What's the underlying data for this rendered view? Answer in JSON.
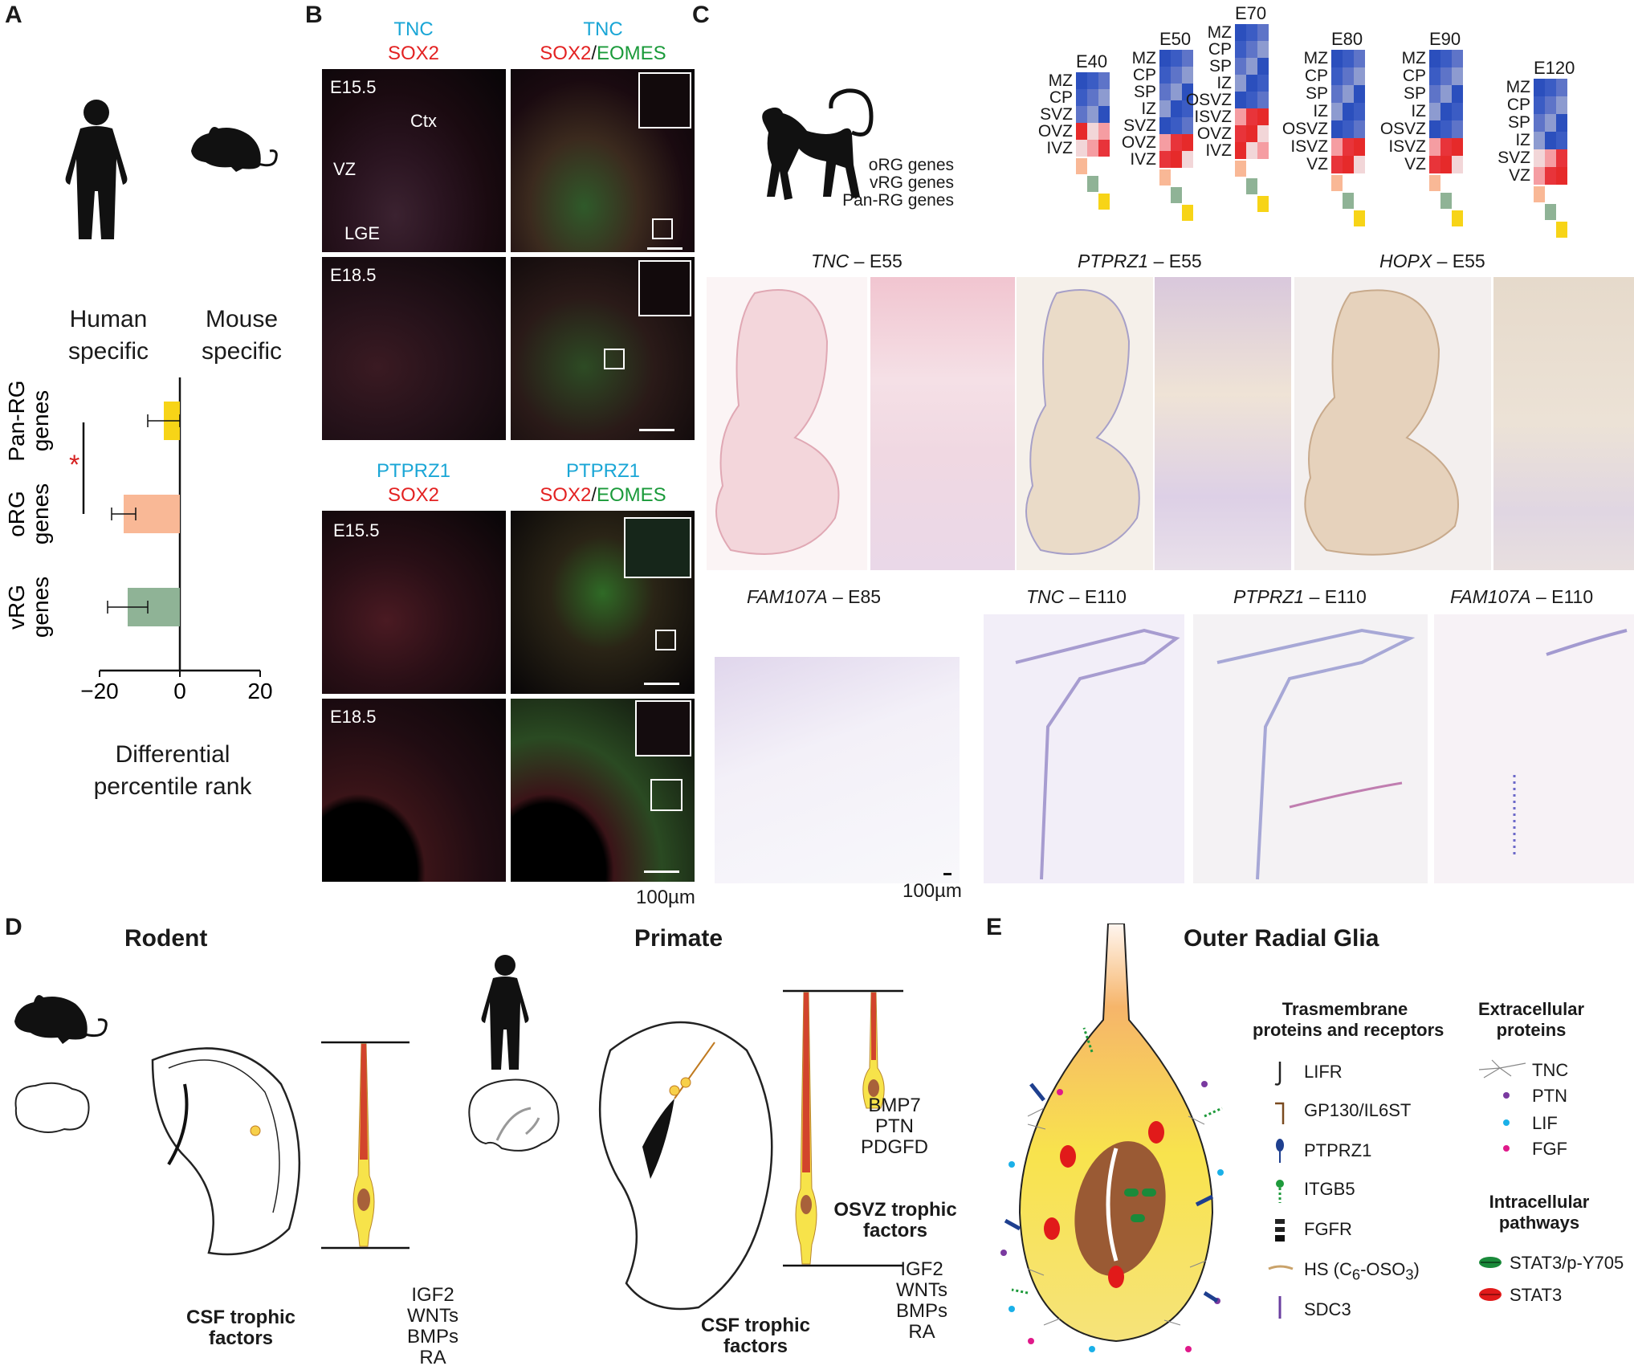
{
  "panels": {
    "a": "A",
    "b": "B",
    "c": "C",
    "d": "D",
    "e": "E"
  },
  "panelA": {
    "left_head": [
      "Human",
      "specific"
    ],
    "right_head": [
      "Mouse",
      "specific"
    ],
    "xlabel": [
      "Differential",
      "percentile rank"
    ],
    "star": "*",
    "chart_data": {
      "type": "bar",
      "orientation": "horizontal",
      "categories": [
        "Pan-RG genes",
        "oRG genes",
        "vRG genes"
      ],
      "category_lines": [
        [
          "Pan-RG",
          "genes"
        ],
        [
          "oRG",
          "genes"
        ],
        [
          "vRG",
          "genes"
        ]
      ],
      "values": [
        -4,
        -14,
        -13
      ],
      "errors": [
        4,
        3,
        5
      ],
      "colors": [
        "#f7d417",
        "#f9b896",
        "#8fb396"
      ],
      "xticks": [
        "−20",
        "0",
        "20"
      ],
      "xtick_values": [
        -20,
        0,
        20
      ],
      "xlim": [
        -24,
        24
      ]
    }
  },
  "panelB": {
    "top": {
      "h1": {
        "a": "TNC",
        "b": "SOX2"
      },
      "h2": {
        "a": "TNC",
        "b": "SOX2",
        "sep": "/",
        "c": "EOMES"
      },
      "ages": [
        "E15.5",
        "E18.5"
      ],
      "regions": [
        "Ctx",
        "VZ",
        "LGE"
      ]
    },
    "bottom": {
      "h1": {
        "a": "PTPRZ1",
        "b": "SOX2"
      },
      "h2": {
        "a": "PTPRZ1",
        "b": "SOX2",
        "sep": "/",
        "c": "EOMES"
      },
      "ages": [
        "E15.5",
        "E18.5"
      ]
    },
    "scale": "100µm"
  },
  "panelC": {
    "heatmaps": [
      {
        "age": "E40",
        "zones": [
          "MZ",
          "CP",
          "SVZ",
          "OVZ",
          "IVZ"
        ]
      },
      {
        "age": "E50",
        "zones": [
          "MZ",
          "CP",
          "SP",
          "IZ",
          "SVZ",
          "OVZ",
          "IVZ"
        ]
      },
      {
        "age": "E70",
        "zones": [
          "MZ",
          "CP",
          "SP",
          "IZ",
          "OSVZ",
          "ISVZ",
          "OVZ",
          "IVZ"
        ]
      },
      {
        "age": "E80",
        "zones": [
          "MZ",
          "CP",
          "SP",
          "IZ",
          "OSVZ",
          "ISVZ",
          "VZ"
        ]
      },
      {
        "age": "E90",
        "zones": [
          "MZ",
          "CP",
          "SP",
          "IZ",
          "OSVZ",
          "ISVZ",
          "VZ"
        ]
      },
      {
        "age": "E120",
        "zones": [
          "MZ",
          "CP",
          "SP",
          "IZ",
          "SVZ",
          "VZ"
        ]
      }
    ],
    "legend": [
      "oRG genes",
      "vRG genes",
      "Pan-RG genes"
    ],
    "legend_colors": [
      "#f9b896",
      "#8fb396",
      "#f7d417"
    ],
    "row1": [
      {
        "gene": "TNC",
        "age": " – E55"
      },
      {
        "gene": "PTPRZ1",
        "age": " – E55"
      },
      {
        "gene": "HOPX",
        "age": " – E55"
      }
    ],
    "row2": [
      {
        "gene": "FAM107A",
        "age": " – E85"
      },
      {
        "gene": "TNC",
        "age": " – E110"
      },
      {
        "gene": "PTPRZ1",
        "age": " – E110"
      },
      {
        "gene": "FAM107A",
        "age": " – E110"
      }
    ],
    "scale": "100µm"
  },
  "panelD": {
    "rodent": "Rodent",
    "primate": "Primate",
    "csf_label": [
      "CSF trophic",
      "factors"
    ],
    "csf_factors": [
      "IGF2",
      "WNTs",
      "BMPs",
      "RA"
    ],
    "osvz_factors": [
      "BMP7",
      "PTN",
      "PDGFD"
    ],
    "osvz_label": [
      "OSVZ trophic",
      "factors"
    ]
  },
  "panelE": {
    "title": "Outer Radial Glia",
    "tm_head": [
      "Trasmembrane",
      "proteins and receptors"
    ],
    "tm_items": [
      "LIFR",
      "GP130/IL6ST",
      "PTPRZ1",
      "ITGB5",
      "FGFR"
    ],
    "hs_label": {
      "pre": "HS (C",
      "sub1": "6",
      "mid": "-OSO",
      "sub2": "3",
      "post": ")"
    },
    "sdc3": "SDC3",
    "ec_head": [
      "Extracellular",
      "proteins"
    ],
    "ec_items": [
      "TNC",
      "PTN",
      "LIF",
      "FGF"
    ],
    "ic_head": [
      "Intracellular",
      "pathways"
    ],
    "ic_items": [
      "STAT3/p-Y705",
      "STAT3"
    ],
    "colors": {
      "lifr": "#222222",
      "gp130": "#7a4a1f",
      "ptprz1": "#1e3f8f",
      "itgb5": "#1e9a3b",
      "hs": "#c9a26a",
      "sdc3": "#6b3fa0",
      "ptn": "#7a3aa0",
      "lif": "#1ab0e8",
      "fgf": "#e0198a",
      "stat3p": "#1a8a3a",
      "stat3": "#e11a1a"
    }
  }
}
